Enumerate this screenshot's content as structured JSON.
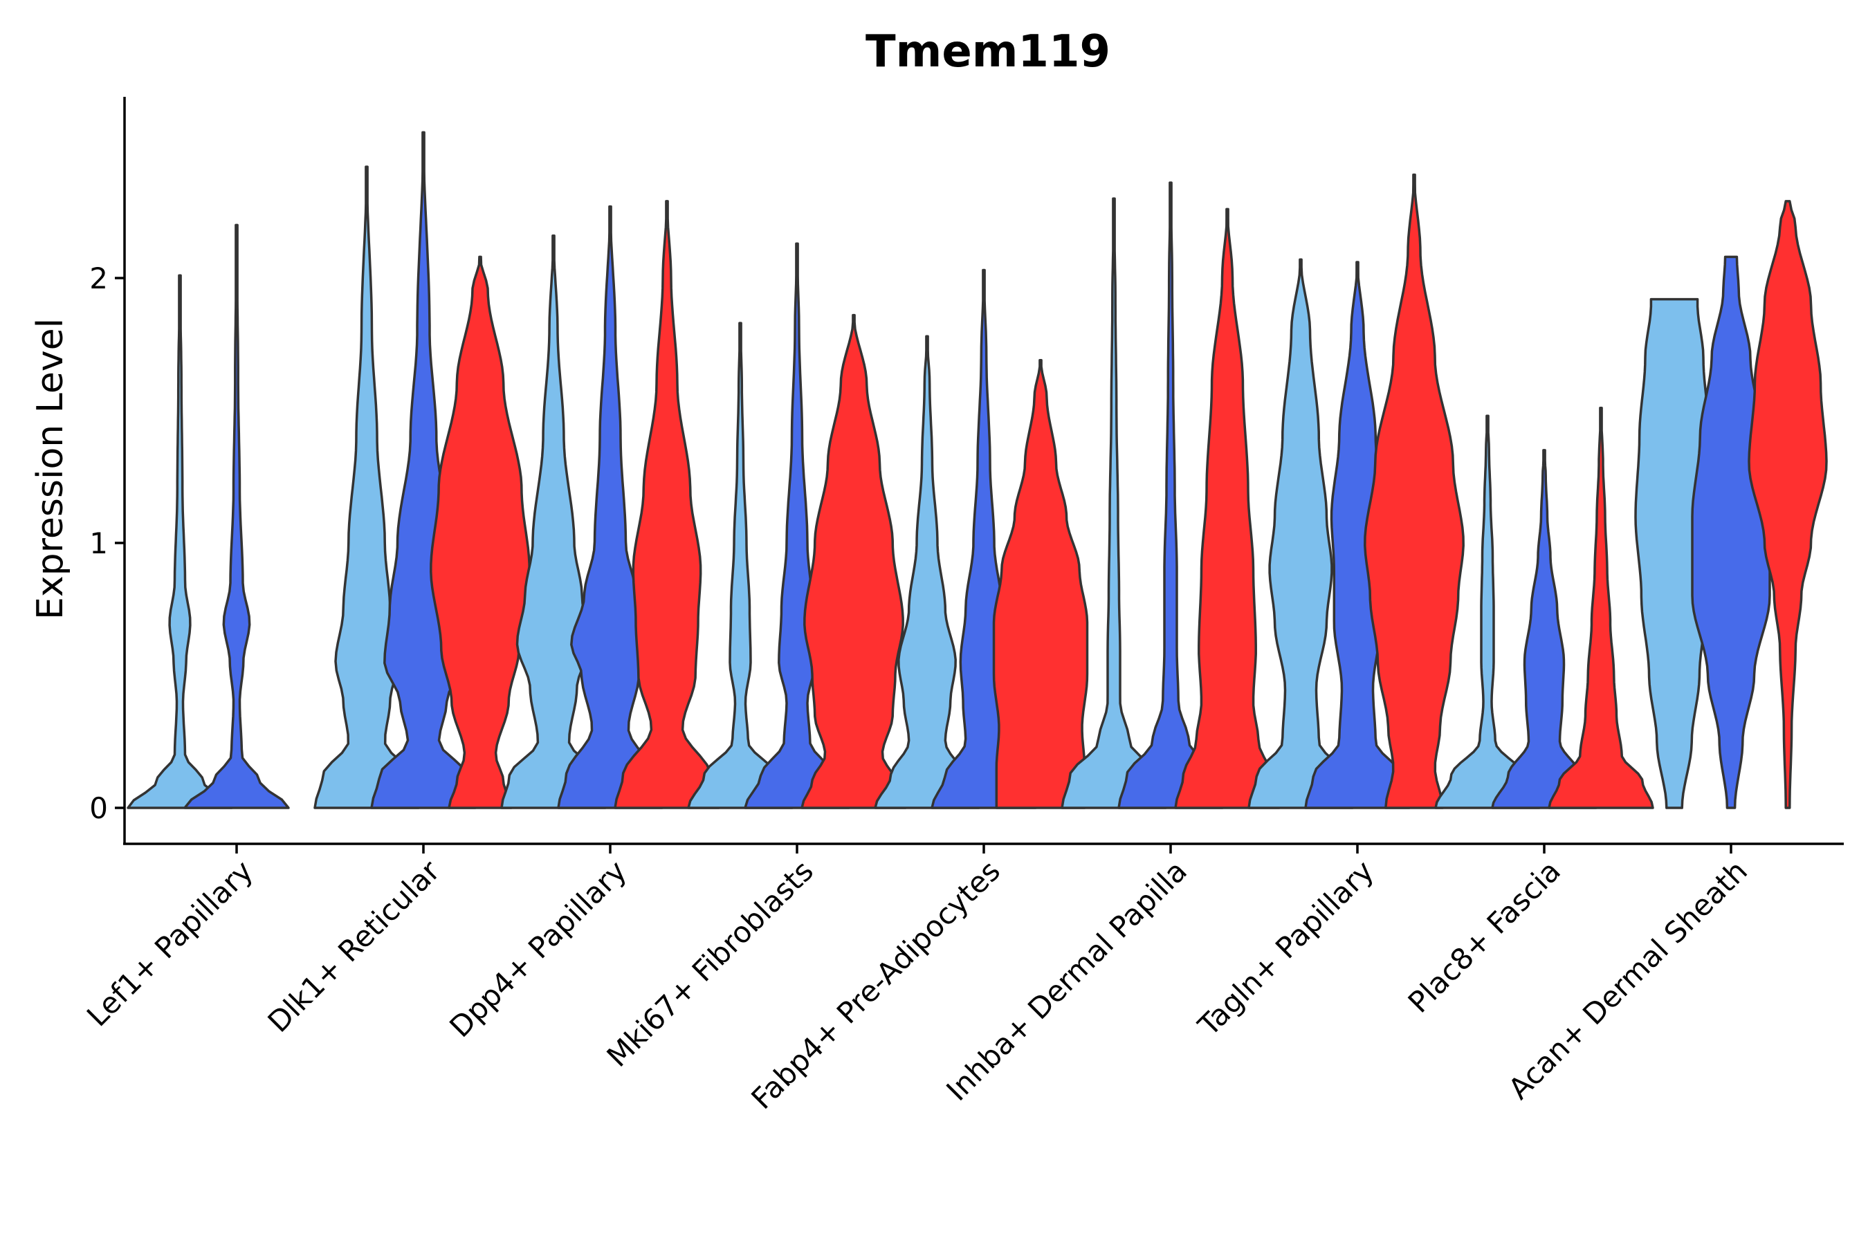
{
  "chart_data": {
    "type": "violin",
    "title": "Tmem119",
    "xlabel": "",
    "ylabel": "Expression Level",
    "ylim": [
      -0.13,
      2.7
    ],
    "yticks": [
      0,
      1,
      2
    ],
    "series_colors": [
      "#7DBFED",
      "#476BEA",
      "#FF3030"
    ],
    "categories": [
      "Lef1+ Papillary",
      "Dlk1+ Reticular",
      "Dpp4+ Papillary",
      "Mki67+ Fibroblasts",
      "Fabp4+ Pre-Adipocytes",
      "Inhba+ Dermal Papilla",
      "Tagln+ Papillary",
      "Plac8+ Fascia",
      "Acan+ Dermal Sheath"
    ],
    "violins": [
      {
        "category": 0,
        "series": 0,
        "max": 2.01,
        "profile": [
          [
            0,
            1.0
          ],
          [
            0.1,
            0.45
          ],
          [
            0.2,
            0.1
          ],
          [
            0.4,
            0.06
          ],
          [
            0.55,
            0.12
          ],
          [
            0.7,
            0.2
          ],
          [
            0.85,
            0.1
          ],
          [
            1.2,
            0.05
          ],
          [
            1.6,
            0.03
          ],
          [
            2.01,
            0.0
          ]
        ]
      },
      {
        "category": 0,
        "series": 1,
        "max": 2.2,
        "profile": [
          [
            0,
            1.0
          ],
          [
            0.1,
            0.45
          ],
          [
            0.2,
            0.1
          ],
          [
            0.4,
            0.06
          ],
          [
            0.55,
            0.13
          ],
          [
            0.7,
            0.25
          ],
          [
            0.85,
            0.12
          ],
          [
            1.2,
            0.06
          ],
          [
            1.6,
            0.03
          ],
          [
            2.2,
            0.0
          ]
        ]
      },
      {
        "category": 1,
        "series": 0,
        "max": 2.42,
        "profile": [
          [
            0,
            1.0
          ],
          [
            0.12,
            0.85
          ],
          [
            0.25,
            0.35
          ],
          [
            0.4,
            0.45
          ],
          [
            0.55,
            0.6
          ],
          [
            0.75,
            0.45
          ],
          [
            1.0,
            0.35
          ],
          [
            1.4,
            0.2
          ],
          [
            1.8,
            0.1
          ],
          [
            2.42,
            0.0
          ]
        ]
      },
      {
        "category": 1,
        "series": 1,
        "max": 2.55,
        "profile": [
          [
            0,
            1.0
          ],
          [
            0.12,
            0.85
          ],
          [
            0.25,
            0.3
          ],
          [
            0.4,
            0.45
          ],
          [
            0.55,
            0.75
          ],
          [
            0.75,
            0.65
          ],
          [
            1.0,
            0.5
          ],
          [
            1.4,
            0.25
          ],
          [
            1.8,
            0.12
          ],
          [
            2.55,
            0.0
          ]
        ]
      },
      {
        "category": 1,
        "series": 2,
        "max": 2.08,
        "profile": [
          [
            0,
            0.6
          ],
          [
            0.1,
            0.45
          ],
          [
            0.2,
            0.3
          ],
          [
            0.4,
            0.55
          ],
          [
            0.6,
            0.75
          ],
          [
            0.9,
            0.95
          ],
          [
            1.2,
            0.8
          ],
          [
            1.6,
            0.45
          ],
          [
            1.95,
            0.15
          ],
          [
            2.08,
            0.0
          ]
        ]
      },
      {
        "category": 2,
        "series": 0,
        "max": 2.16,
        "profile": [
          [
            0,
            1.0
          ],
          [
            0.12,
            0.85
          ],
          [
            0.25,
            0.3
          ],
          [
            0.45,
            0.45
          ],
          [
            0.62,
            0.7
          ],
          [
            0.8,
            0.55
          ],
          [
            1.0,
            0.4
          ],
          [
            1.4,
            0.2
          ],
          [
            1.8,
            0.08
          ],
          [
            2.16,
            0.0
          ]
        ]
      },
      {
        "category": 2,
        "series": 1,
        "max": 2.27,
        "profile": [
          [
            0,
            1.0
          ],
          [
            0.12,
            0.85
          ],
          [
            0.3,
            0.35
          ],
          [
            0.5,
            0.55
          ],
          [
            0.62,
            0.75
          ],
          [
            0.8,
            0.5
          ],
          [
            1.0,
            0.3
          ],
          [
            1.4,
            0.2
          ],
          [
            1.8,
            0.1
          ],
          [
            2.27,
            0.0
          ]
        ]
      },
      {
        "category": 2,
        "series": 2,
        "max": 2.29,
        "profile": [
          [
            0,
            1.0
          ],
          [
            0.12,
            0.85
          ],
          [
            0.3,
            0.3
          ],
          [
            0.5,
            0.55
          ],
          [
            0.7,
            0.6
          ],
          [
            0.9,
            0.65
          ],
          [
            1.2,
            0.45
          ],
          [
            1.6,
            0.2
          ],
          [
            2.0,
            0.08
          ],
          [
            2.29,
            0.0
          ]
        ]
      },
      {
        "category": 3,
        "series": 0,
        "max": 1.83,
        "profile": [
          [
            0,
            1.0
          ],
          [
            0.12,
            0.7
          ],
          [
            0.25,
            0.15
          ],
          [
            0.4,
            0.1
          ],
          [
            0.55,
            0.2
          ],
          [
            0.75,
            0.18
          ],
          [
            1.0,
            0.12
          ],
          [
            1.3,
            0.06
          ],
          [
            1.6,
            0.03
          ],
          [
            1.83,
            0.0
          ]
        ]
      },
      {
        "category": 3,
        "series": 1,
        "max": 2.13,
        "profile": [
          [
            0,
            1.0
          ],
          [
            0.12,
            0.7
          ],
          [
            0.25,
            0.25
          ],
          [
            0.4,
            0.2
          ],
          [
            0.55,
            0.35
          ],
          [
            0.75,
            0.3
          ],
          [
            1.0,
            0.2
          ],
          [
            1.4,
            0.1
          ],
          [
            1.8,
            0.04
          ],
          [
            2.13,
            0.0
          ]
        ]
      },
      {
        "category": 3,
        "series": 2,
        "max": 1.86,
        "profile": [
          [
            0,
            1.0
          ],
          [
            0.1,
            0.8
          ],
          [
            0.2,
            0.55
          ],
          [
            0.35,
            0.75
          ],
          [
            0.5,
            0.8
          ],
          [
            0.7,
            0.95
          ],
          [
            1.0,
            0.75
          ],
          [
            1.3,
            0.5
          ],
          [
            1.6,
            0.25
          ],
          [
            1.86,
            0.0
          ]
        ]
      },
      {
        "category": 4,
        "series": 0,
        "max": 1.78,
        "profile": [
          [
            0,
            1.0
          ],
          [
            0.12,
            0.7
          ],
          [
            0.25,
            0.35
          ],
          [
            0.4,
            0.45
          ],
          [
            0.55,
            0.55
          ],
          [
            0.75,
            0.35
          ],
          [
            1.0,
            0.2
          ],
          [
            1.3,
            0.1
          ],
          [
            1.6,
            0.05
          ],
          [
            1.78,
            0.0
          ]
        ]
      },
      {
        "category": 4,
        "series": 1,
        "max": 2.03,
        "profile": [
          [
            0,
            1.0
          ],
          [
            0.12,
            0.75
          ],
          [
            0.25,
            0.35
          ],
          [
            0.4,
            0.4
          ],
          [
            0.55,
            0.45
          ],
          [
            0.75,
            0.35
          ],
          [
            1.0,
            0.2
          ],
          [
            1.3,
            0.12
          ],
          [
            1.7,
            0.05
          ],
          [
            2.03,
            0.0
          ]
        ]
      },
      {
        "category": 4,
        "series": 2,
        "max": 1.69,
        "profile": [
          [
            0,
            0.85
          ],
          [
            0.15,
            0.85
          ],
          [
            0.3,
            0.8
          ],
          [
            0.5,
            0.9
          ],
          [
            0.7,
            0.9
          ],
          [
            0.9,
            0.75
          ],
          [
            1.1,
            0.5
          ],
          [
            1.3,
            0.3
          ],
          [
            1.55,
            0.12
          ],
          [
            1.69,
            0.0
          ]
        ]
      },
      {
        "category": 5,
        "series": 0,
        "max": 2.3,
        "profile": [
          [
            0,
            1.0
          ],
          [
            0.12,
            0.85
          ],
          [
            0.25,
            0.3
          ],
          [
            0.4,
            0.12
          ],
          [
            0.6,
            0.12
          ],
          [
            0.8,
            0.1
          ],
          [
            1.1,
            0.08
          ],
          [
            1.5,
            0.05
          ],
          [
            1.9,
            0.03
          ],
          [
            2.3,
            0.0
          ]
        ]
      },
      {
        "category": 5,
        "series": 1,
        "max": 2.36,
        "profile": [
          [
            0,
            1.0
          ],
          [
            0.12,
            0.85
          ],
          [
            0.25,
            0.35
          ],
          [
            0.4,
            0.15
          ],
          [
            0.6,
            0.12
          ],
          [
            0.9,
            0.12
          ],
          [
            1.2,
            0.08
          ],
          [
            1.6,
            0.05
          ],
          [
            2.0,
            0.03
          ],
          [
            2.36,
            0.0
          ]
        ]
      },
      {
        "category": 5,
        "series": 2,
        "max": 2.26,
        "profile": [
          [
            0,
            1.0
          ],
          [
            0.12,
            0.85
          ],
          [
            0.25,
            0.6
          ],
          [
            0.4,
            0.5
          ],
          [
            0.6,
            0.55
          ],
          [
            0.9,
            0.5
          ],
          [
            1.2,
            0.4
          ],
          [
            1.6,
            0.3
          ],
          [
            2.0,
            0.1
          ],
          [
            2.26,
            0.0
          ]
        ]
      },
      {
        "category": 6,
        "series": 0,
        "max": 2.07,
        "profile": [
          [
            0,
            1.0
          ],
          [
            0.12,
            0.85
          ],
          [
            0.25,
            0.35
          ],
          [
            0.45,
            0.3
          ],
          [
            0.7,
            0.5
          ],
          [
            0.9,
            0.6
          ],
          [
            1.1,
            0.5
          ],
          [
            1.4,
            0.35
          ],
          [
            1.8,
            0.18
          ],
          [
            2.07,
            0.0
          ]
        ]
      },
      {
        "category": 6,
        "series": 1,
        "max": 2.06,
        "profile": [
          [
            0,
            1.0
          ],
          [
            0.12,
            0.85
          ],
          [
            0.25,
            0.35
          ],
          [
            0.45,
            0.3
          ],
          [
            0.7,
            0.45
          ],
          [
            0.9,
            0.45
          ],
          [
            1.1,
            0.5
          ],
          [
            1.4,
            0.35
          ],
          [
            1.8,
            0.12
          ],
          [
            2.06,
            0.0
          ]
        ]
      },
      {
        "category": 6,
        "series": 2,
        "max": 2.39,
        "profile": [
          [
            0,
            0.55
          ],
          [
            0.15,
            0.4
          ],
          [
            0.3,
            0.5
          ],
          [
            0.55,
            0.7
          ],
          [
            0.8,
            0.85
          ],
          [
            1.0,
            0.95
          ],
          [
            1.3,
            0.75
          ],
          [
            1.7,
            0.4
          ],
          [
            2.1,
            0.12
          ],
          [
            2.39,
            0.0
          ]
        ]
      },
      {
        "category": 7,
        "series": 0,
        "max": 1.48,
        "profile": [
          [
            0,
            1.0
          ],
          [
            0.12,
            0.7
          ],
          [
            0.25,
            0.15
          ],
          [
            0.4,
            0.08
          ],
          [
            0.55,
            0.12
          ],
          [
            0.75,
            0.12
          ],
          [
            0.95,
            0.1
          ],
          [
            1.15,
            0.06
          ],
          [
            1.35,
            0.03
          ],
          [
            1.48,
            0.0
          ]
        ]
      },
      {
        "category": 7,
        "series": 1,
        "max": 1.35,
        "profile": [
          [
            0,
            1.0
          ],
          [
            0.12,
            0.7
          ],
          [
            0.25,
            0.3
          ],
          [
            0.4,
            0.35
          ],
          [
            0.55,
            0.38
          ],
          [
            0.75,
            0.25
          ],
          [
            0.95,
            0.12
          ],
          [
            1.1,
            0.06
          ],
          [
            1.25,
            0.03
          ],
          [
            1.35,
            0.0
          ]
        ]
      },
      {
        "category": 7,
        "series": 2,
        "max": 1.51,
        "profile": [
          [
            0,
            1.0
          ],
          [
            0.1,
            0.8
          ],
          [
            0.2,
            0.4
          ],
          [
            0.35,
            0.3
          ],
          [
            0.5,
            0.25
          ],
          [
            0.7,
            0.18
          ],
          [
            0.9,
            0.12
          ],
          [
            1.1,
            0.08
          ],
          [
            1.3,
            0.04
          ],
          [
            1.51,
            0.0
          ]
        ]
      },
      {
        "category": 8,
        "series": 0,
        "max": 1.92,
        "cap": 0.6,
        "profile": [
          [
            0,
            0.2
          ],
          [
            0.25,
            0.45
          ],
          [
            0.5,
            0.65
          ],
          [
            0.8,
            0.85
          ],
          [
            1.1,
            1.0
          ],
          [
            1.4,
            0.9
          ],
          [
            1.7,
            0.75
          ],
          [
            1.9,
            0.6
          ],
          [
            1.92,
            0.6
          ]
        ]
      },
      {
        "category": 8,
        "series": 1,
        "max": 2.08,
        "cap": 0.15,
        "profile": [
          [
            0,
            0.1
          ],
          [
            0.25,
            0.3
          ],
          [
            0.5,
            0.6
          ],
          [
            0.8,
            1.0
          ],
          [
            1.1,
            1.0
          ],
          [
            1.4,
            0.8
          ],
          [
            1.7,
            0.5
          ],
          [
            1.95,
            0.2
          ],
          [
            2.08,
            0.15
          ]
        ]
      },
      {
        "category": 8,
        "series": 2,
        "max": 2.29,
        "cap": 0.05,
        "profile": [
          [
            0,
            0.05
          ],
          [
            0.3,
            0.1
          ],
          [
            0.6,
            0.2
          ],
          [
            0.8,
            0.35
          ],
          [
            1.0,
            0.6
          ],
          [
            1.3,
            1.0
          ],
          [
            1.6,
            0.85
          ],
          [
            1.9,
            0.6
          ],
          [
            2.2,
            0.2
          ],
          [
            2.29,
            0.05
          ]
        ]
      }
    ]
  }
}
